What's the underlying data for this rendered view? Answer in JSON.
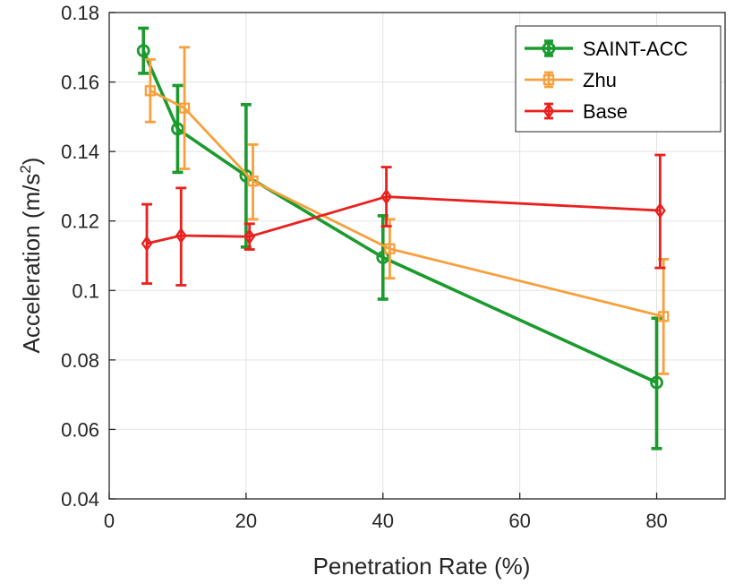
{
  "chart_data": {
    "type": "line",
    "title": "",
    "xlabel": "Penetration Rate (%)",
    "ylabel_main": "Acceleration (m/s",
    "ylabel_sup": "2",
    "ylabel_end": ")",
    "xlim": [
      0,
      90
    ],
    "ylim": [
      0.04,
      0.18
    ],
    "xticks": [
      0,
      20,
      40,
      60,
      80
    ],
    "xtick_labels": [
      "0",
      "20",
      "40",
      "60",
      "80"
    ],
    "yticks": [
      0.04,
      0.06,
      0.08,
      0.1,
      0.12,
      0.14,
      0.16,
      0.18
    ],
    "ytick_labels": [
      "0.04",
      "0.06",
      "0.08",
      "0.1",
      "0.12",
      "0.14",
      "0.16",
      "0.18"
    ],
    "grid": true,
    "legend_position": "top-right",
    "series": [
      {
        "name": "SAINT-ACC",
        "color": "#1b9a2e",
        "marker": "circle",
        "x": [
          5,
          10,
          20,
          40,
          80
        ],
        "y": [
          0.169,
          0.1465,
          0.133,
          0.1095,
          0.0735
        ],
        "err_low": [
          0.1625,
          0.134,
          0.1125,
          0.0975,
          0.0545
        ],
        "err_high": [
          0.1755,
          0.159,
          0.1535,
          0.1215,
          0.092
        ]
      },
      {
        "name": "Zhu",
        "color": "#f7a03d",
        "marker": "square",
        "x": [
          6,
          11,
          21,
          41,
          81
        ],
        "y": [
          0.1575,
          0.1525,
          0.1315,
          0.112,
          0.0925
        ],
        "err_low": [
          0.1485,
          0.135,
          0.1205,
          0.1035,
          0.076
        ],
        "err_high": [
          0.1665,
          0.17,
          0.142,
          0.1205,
          0.109
        ]
      },
      {
        "name": "Base",
        "color": "#e8201e",
        "marker": "diamond",
        "x": [
          5.5,
          10.5,
          20.5,
          40.5,
          80.5
        ],
        "y": [
          0.1135,
          0.1158,
          0.1155,
          0.127,
          0.123
        ],
        "err_low": [
          0.102,
          0.1015,
          0.1118,
          0.1185,
          0.1065
        ],
        "err_high": [
          0.1248,
          0.1295,
          0.1192,
          0.1355,
          0.139
        ]
      }
    ]
  }
}
